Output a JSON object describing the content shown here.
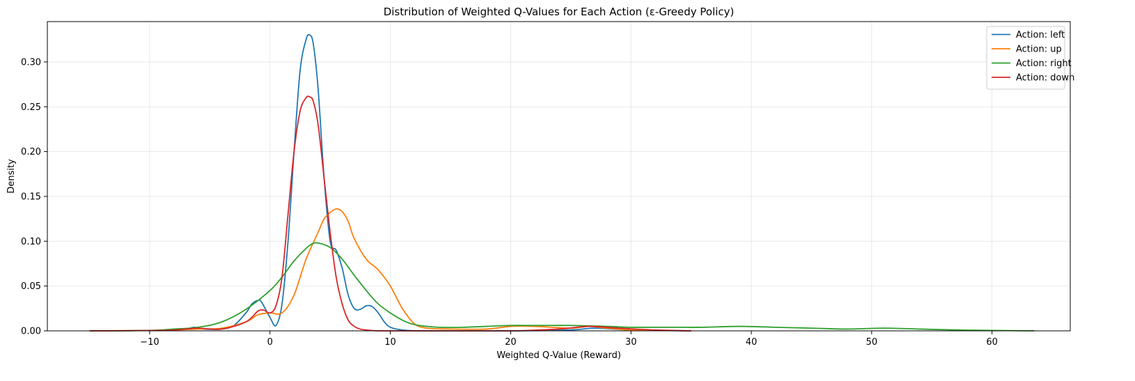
{
  "chart_data": {
    "type": "line",
    "title": "Distribution of Weighted Q-Values for Each Action (ε-Greedy Policy)",
    "xlabel": "Weighted Q-Value (Reward)",
    "ylabel": "Density",
    "xlim": [
      -18.5,
      66.5
    ],
    "ylim": [
      0,
      0.345
    ],
    "xticks": [
      -10,
      0,
      10,
      20,
      30,
      40,
      50,
      60
    ],
    "yticks": [
      0.0,
      0.05,
      0.1,
      0.15,
      0.2,
      0.25,
      0.3
    ],
    "ytick_labels": [
      "0.00",
      "0.05",
      "0.10",
      "0.15",
      "0.20",
      "0.25",
      "0.30"
    ],
    "xtick_labels": [
      "−10",
      "0",
      "10",
      "20",
      "30",
      "40",
      "50",
      "60"
    ],
    "grid": true,
    "legend_position": "top-right",
    "series": [
      {
        "name": "Action: left",
        "color": "#1f77b4",
        "x": [
          -15,
          -9,
          -7,
          -6.3,
          -5.5,
          -4,
          -3,
          -2,
          -1.5,
          -1,
          -0.7,
          0,
          0.5,
          1,
          1.5,
          2,
          2.5,
          3,
          3.3,
          3.6,
          4,
          4.5,
          5,
          5.5,
          6,
          6.5,
          7,
          7.5,
          8,
          8.5,
          9,
          9.5,
          10,
          11,
          13,
          20,
          25,
          27,
          30,
          35
        ],
        "y": [
          0,
          0.0005,
          0.002,
          0.004,
          0.002,
          0.002,
          0.006,
          0.02,
          0.03,
          0.034,
          0.032,
          0.015,
          0.006,
          0.03,
          0.1,
          0.2,
          0.29,
          0.325,
          0.33,
          0.32,
          0.27,
          0.17,
          0.1,
          0.09,
          0.07,
          0.04,
          0.025,
          0.024,
          0.028,
          0.027,
          0.02,
          0.01,
          0.004,
          0.001,
          0,
          0,
          0.001,
          0.003,
          0.001,
          0
        ]
      },
      {
        "name": "Action: up",
        "color": "#ff7f0e",
        "x": [
          -15,
          -9,
          -6,
          -4,
          -2,
          -1,
          0,
          1,
          2,
          3,
          4,
          4.5,
          5,
          5.5,
          6,
          6.5,
          7,
          8,
          9,
          10,
          11,
          12,
          13,
          15,
          18,
          20,
          22,
          25,
          26.5,
          28,
          30,
          33,
          35
        ],
        "y": [
          0,
          0.0005,
          0.002,
          0.003,
          0.01,
          0.018,
          0.02,
          0.02,
          0.04,
          0.08,
          0.11,
          0.125,
          0.132,
          0.136,
          0.133,
          0.122,
          0.103,
          0.08,
          0.068,
          0.05,
          0.025,
          0.008,
          0.003,
          0.002,
          0.002,
          0.005,
          0.005,
          0.003,
          0.005,
          0.003,
          0.001,
          0.0005,
          0
        ]
      },
      {
        "name": "Action: right",
        "color": "#2ca02c",
        "x": [
          -15,
          -10,
          -8,
          -6,
          -4,
          -2,
          0,
          1,
          2,
          3,
          3.5,
          4,
          5,
          6,
          7,
          8,
          9,
          10,
          11,
          12,
          14,
          16,
          18,
          20,
          22,
          25,
          28,
          30,
          33,
          36,
          39,
          42,
          45,
          48,
          51,
          54,
          57,
          60,
          63.5
        ],
        "y": [
          0,
          0.0005,
          0.002,
          0.004,
          0.01,
          0.024,
          0.045,
          0.06,
          0.078,
          0.092,
          0.097,
          0.098,
          0.093,
          0.08,
          0.062,
          0.045,
          0.03,
          0.02,
          0.012,
          0.007,
          0.004,
          0.004,
          0.005,
          0.006,
          0.006,
          0.006,
          0.005,
          0.004,
          0.004,
          0.004,
          0.005,
          0.004,
          0.003,
          0.002,
          0.003,
          0.002,
          0.001,
          0.0005,
          0
        ]
      },
      {
        "name": "Action: down",
        "color": "#d62728",
        "x": [
          -15,
          -9,
          -7,
          -6,
          -4,
          -2,
          -1,
          -0.5,
          0,
          0.5,
          1,
          1.5,
          2,
          2.5,
          3,
          3.3,
          3.6,
          4,
          4.5,
          5,
          5.5,
          6,
          6.5,
          7,
          7.5,
          8,
          9,
          10,
          12,
          15,
          20,
          24,
          26.5,
          29,
          32,
          35
        ],
        "y": [
          0,
          0.0005,
          0.002,
          0.003,
          0.002,
          0.01,
          0.022,
          0.023,
          0.02,
          0.028,
          0.06,
          0.13,
          0.2,
          0.245,
          0.26,
          0.261,
          0.256,
          0.23,
          0.17,
          0.11,
          0.06,
          0.03,
          0.012,
          0.005,
          0.002,
          0.001,
          0,
          0,
          0,
          0,
          0,
          0.002,
          0.005,
          0.003,
          0.001,
          0
        ]
      }
    ]
  }
}
